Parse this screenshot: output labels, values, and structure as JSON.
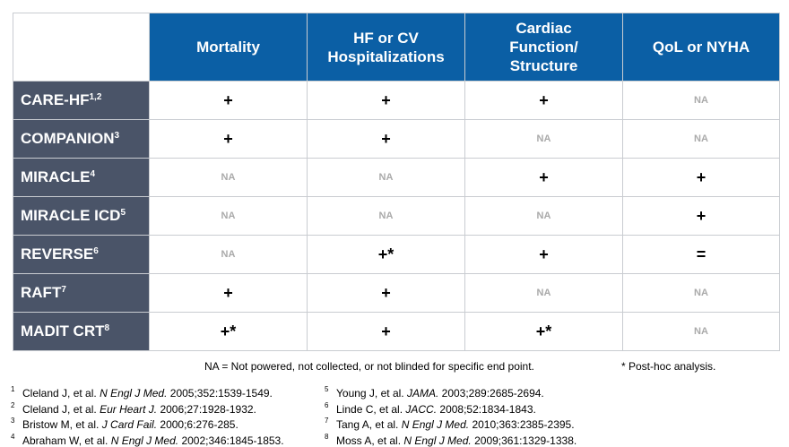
{
  "table": {
    "columns": [
      "Mortality",
      "HF or CV Hospitalizations",
      "Cardiac Function/ Structure",
      "QoL or NYHA"
    ],
    "rows": [
      {
        "name": "CARE-HF",
        "sup": "1,2",
        "cells": [
          "+",
          "+",
          "+",
          "NA"
        ]
      },
      {
        "name": "COMPANION",
        "sup": "3",
        "cells": [
          "+",
          "+",
          "NA",
          "NA"
        ]
      },
      {
        "name": "MIRACLE",
        "sup": "4",
        "cells": [
          "NA",
          "NA",
          "+",
          "+"
        ]
      },
      {
        "name": "MIRACLE ICD",
        "sup": "5",
        "cells": [
          "NA",
          "NA",
          "NA",
          "+"
        ]
      },
      {
        "name": "REVERSE",
        "sup": "6",
        "cells": [
          "NA",
          "+*",
          "+",
          "="
        ]
      },
      {
        "name": "RAFT",
        "sup": "7",
        "cells": [
          "+",
          "+",
          "NA",
          "NA"
        ]
      },
      {
        "name": "MADIT CRT",
        "sup": "8",
        "cells": [
          "+*",
          "+",
          "+*",
          "NA"
        ]
      }
    ]
  },
  "notes": [
    "NA = Not powered, not collected, or not blinded for specific end point.",
    "* Post-hoc analysis."
  ],
  "references": [
    {
      "number": "1",
      "author": "Cleland J, et al.",
      "journal": "N Engl J Med.",
      "citation": "2005;352:1539-1549."
    },
    {
      "number": "2",
      "author": "Cleland J, et al.",
      "journal": "Eur Heart J.",
      "citation": "2006;27:1928-1932."
    },
    {
      "number": "3",
      "author": "Bristow M, et al.",
      "journal": "J Card Fail.",
      "citation": "2000;6:276-285."
    },
    {
      "number": "4",
      "author": "Abraham W, et al.",
      "journal": "N Engl J Med.",
      "citation": "2002;346:1845-1853."
    },
    {
      "number": "5",
      "author": "Young J, et al.",
      "journal": "JAMA.",
      "citation": "2003;289:2685-2694."
    },
    {
      "number": "6",
      "author": "Linde C, et al.",
      "journal": "JACC.",
      "citation": "2008;52:1834-1843."
    },
    {
      "number": "7",
      "author": "Tang A, et al.",
      "journal": "N Engl J Med.",
      "citation": "2010;363:2385-2395."
    },
    {
      "number": "8",
      "author": "Moss A, et al.",
      "journal": "N Engl J Med.",
      "citation": "2009;361:1329-1338."
    }
  ]
}
